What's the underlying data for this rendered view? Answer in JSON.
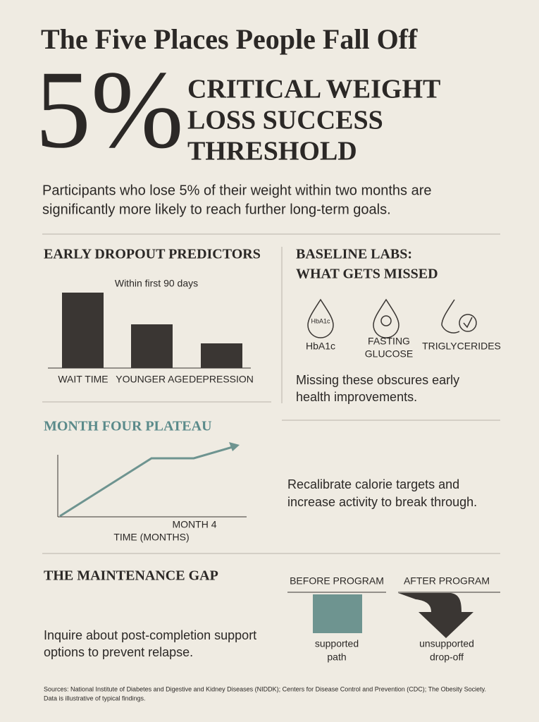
{
  "header": {
    "title": "The Five Places People Fall Off",
    "stat": "5%",
    "stat_label": [
      "CRITICAL WEIGHT",
      "LOSS SUCCESS",
      "THRESHOLD"
    ],
    "intro": [
      "Participants who lose 5% of their weight within two months are",
      "significantly more likely to reach further long-term goals."
    ]
  },
  "dropout": {
    "title": "EARLY DROPOUT PREDICTORS",
    "subtitle": "Within first 90 days",
    "categories": [
      "WAIT TIME",
      "YOUNGER AGE",
      "DEPRESSION"
    ]
  },
  "labs": {
    "title": [
      "BASELINE LABS:",
      "WHAT GETS MISSED"
    ],
    "icon_text": "HbA1c",
    "items": [
      [
        "HbA1c"
      ],
      [
        "FASTING",
        "GLUCOSE"
      ],
      [
        "TRIGLYCERIDES"
      ]
    ],
    "note": [
      "Missing these obscures early",
      "health improvements."
    ]
  },
  "plateau": {
    "title": "MONTH FOUR PLATEAU",
    "marker": "MONTH 4",
    "x_label": "TIME (MONTHS)",
    "note": [
      "Recalibrate calorie targets and",
      "increase activity to break through."
    ]
  },
  "maintenance": {
    "title": "THE MAINTENANCE GAP",
    "note": [
      "Inquire about post-completion support",
      "options to prevent relapse."
    ],
    "columns": [
      {
        "heading": "BEFORE PROGRAM",
        "caption": [
          "supported",
          "path"
        ]
      },
      {
        "heading": "AFTER PROGRAM",
        "caption": [
          "unsupported",
          "drop-off"
        ]
      }
    ]
  },
  "footer": [
    "Sources: National Institute of Diabetes and Digestive and Kidney Diseases (NIDDK); Centers for Disease Control and Prevention (CDC); The Obesity Society.",
    "Data is illustrative of typical findings."
  ]
}
